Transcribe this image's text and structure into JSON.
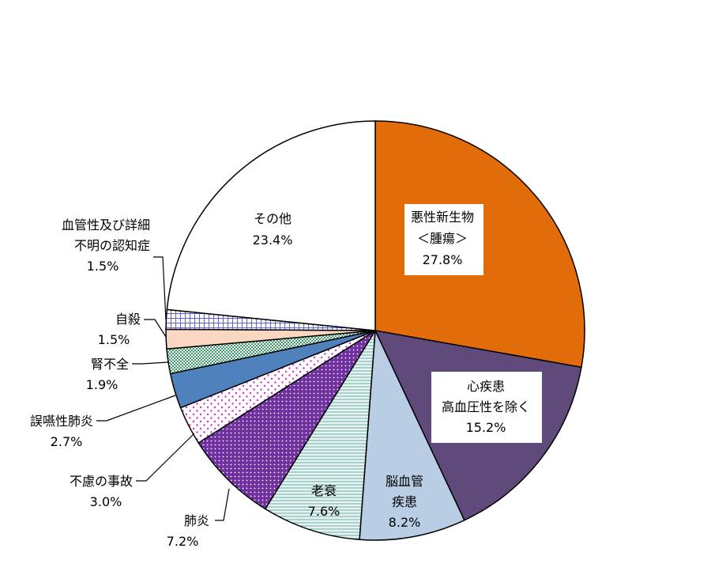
{
  "chart_data": {
    "type": "pie",
    "title": "",
    "start": "12 o'clock",
    "direction": "clockwise",
    "slices": [
      {
        "name": "悪性新生物",
        "lines": [
          "悪性新生物",
          "＜腫瘍＞",
          "27.8%"
        ],
        "value": 27.8,
        "value_label": "27.8%",
        "color": "#E36C0A",
        "fill": "solid",
        "label_box": true
      },
      {
        "name": "心疾患",
        "lines": [
          "心疾患",
          "高血圧性を除く",
          "15.2%"
        ],
        "value": 15.2,
        "value_label": "15.2%",
        "color": "#604A7B",
        "fill": "solid",
        "label_box": true
      },
      {
        "name": "脳血管疾患",
        "lines": [
          "脳血管",
          "疾患",
          "8.2%"
        ],
        "value": 8.2,
        "value_label": "8.2%",
        "color": "#B9CDE5",
        "fill": "solid"
      },
      {
        "name": "老衰",
        "lines": [
          "老衰",
          "7.6%"
        ],
        "value": 7.6,
        "value_label": "7.6%",
        "color": "#8FBCBC",
        "fill": "horizontal-lines"
      },
      {
        "name": "肺炎",
        "lines": [
          "肺炎",
          "7.2%"
        ],
        "value": 7.2,
        "value_label": "7.2%",
        "color": "#7030A0",
        "fill": "dots-dense"
      },
      {
        "name": "不慮の事故",
        "lines": [
          "不慮の事故",
          "3.0%"
        ],
        "value": 3.0,
        "value_label": "3.0%",
        "color": "#CC33CC",
        "fill": "dots-sparse"
      },
      {
        "name": "誤嚥性肺炎",
        "lines": [
          "誤嚥性肺炎",
          "2.7%"
        ],
        "value": 2.7,
        "value_label": "2.7%",
        "color": "#4F81BD",
        "fill": "solid"
      },
      {
        "name": "腎不全",
        "lines": [
          "腎不全",
          "1.9%"
        ],
        "value": 1.9,
        "value_label": "1.9%",
        "color": "#3A9A6A",
        "fill": "checker"
      },
      {
        "name": "自殺",
        "lines": [
          "自殺",
          "1.5%"
        ],
        "value": 1.5,
        "value_label": "1.5%",
        "color": "#FAD7C0",
        "fill": "solid"
      },
      {
        "name": "血管性及び詳細不明の認知症",
        "lines": [
          "血管性及び詳細",
          "不明の認知症",
          "1.5%"
        ],
        "value": 1.5,
        "value_label": "1.5%",
        "color": "#8080E0",
        "fill": "grid"
      },
      {
        "name": "その他",
        "lines": [
          "その他",
          "23.4%"
        ],
        "value": 23.4,
        "value_label": "23.4%",
        "color": "#FFFFFF",
        "fill": "solid"
      }
    ]
  }
}
